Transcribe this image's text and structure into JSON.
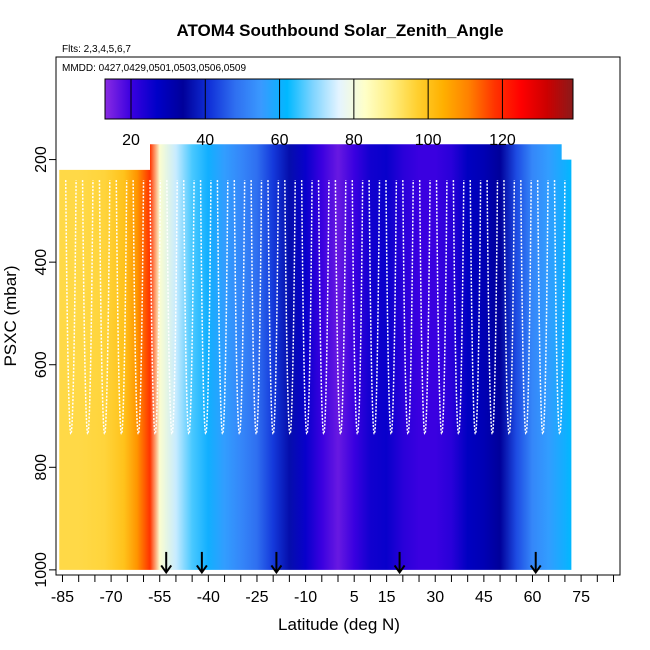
{
  "chart_data": {
    "type": "heatmap",
    "title": "ATOM4 Southbound Solar_Zenith_Angle",
    "flights_label": "Flts: 2,3,4,5,6,7",
    "dates_label": "MMDD: 0427,0429,0501,0503,0506,0509",
    "xlabel": "Latitude (deg N)",
    "ylabel": "PSXC (mbar)",
    "xlim": [
      -87,
      87
    ],
    "ylim": [
      1010,
      0
    ],
    "x_ticks": [
      -85,
      -70,
      -55,
      -40,
      -25,
      -10,
      5,
      15,
      30,
      45,
      60,
      75
    ],
    "x_tick_labels": [
      "-85",
      "-70",
      "-55",
      "-40",
      "-25",
      "-10",
      "5",
      "15",
      "30",
      "45",
      "60",
      "75"
    ],
    "y_ticks": [
      200,
      400,
      600,
      800,
      1000
    ],
    "y_tick_labels": [
      "200",
      "400",
      "600",
      "800",
      "1000"
    ],
    "colorbar": {
      "range": [
        13,
        139
      ],
      "ticks": [
        20,
        40,
        60,
        80,
        100,
        120
      ],
      "tick_labels": [
        "20",
        "40",
        "60",
        "80",
        "100",
        "120"
      ],
      "colors": [
        "#8a2be2",
        "#3a00e0",
        "#0000c8",
        "#00009a",
        "#1030d8",
        "#2f6ff0",
        "#3a99ff",
        "#00b8ff",
        "#7fd4ff",
        "#e4f4ff",
        "#ffffc8",
        "#ffee80",
        "#ffd030",
        "#ffb000",
        "#ff8000",
        "#ff3300",
        "#ff0000",
        "#cc0000",
        "#8b1a1a"
      ]
    },
    "sza_by_latitude": {
      "lat": [
        -86,
        -80,
        -72,
        -66,
        -62,
        -58,
        -55,
        -50,
        -45,
        -40,
        -35,
        -30,
        -25,
        -20,
        -15,
        -10,
        -5,
        0,
        5,
        10,
        15,
        20,
        25,
        30,
        35,
        40,
        45,
        50,
        55,
        60,
        65,
        70,
        72
      ],
      "sza": [
        95,
        95,
        96,
        100,
        108,
        118,
        82,
        74,
        66,
        60,
        56,
        52,
        48,
        42,
        36,
        26,
        20,
        16,
        20,
        25,
        26,
        22,
        20,
        20,
        22,
        28,
        30,
        34,
        44,
        52,
        56,
        60,
        62
      ]
    },
    "data_extent_pressure_top": [
      {
        "lat": -86,
        "p": 220
      },
      {
        "lat": -58,
        "p": 220
      },
      {
        "lat": -58,
        "p": 170
      },
      {
        "lat": 69,
        "p": 170
      },
      {
        "lat": 69,
        "p": 200
      },
      {
        "lat": 72,
        "p": 200
      }
    ],
    "profile_markers_lat": [
      -53,
      -42,
      -19,
      19,
      61
    ]
  }
}
